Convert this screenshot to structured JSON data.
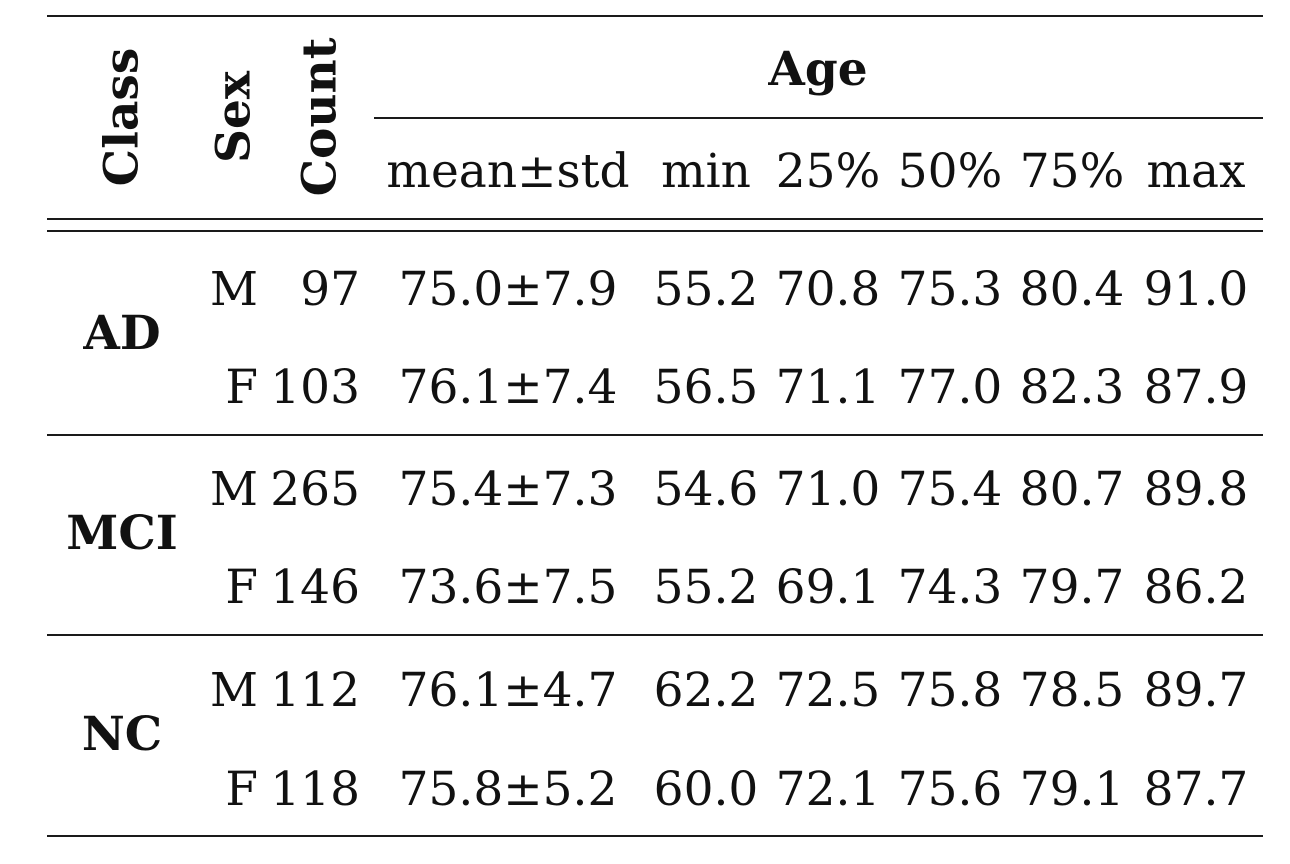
{
  "header": {
    "class": "Class",
    "sex": "Sex",
    "count": "Count",
    "age": "Age",
    "sub": [
      "mean±std",
      "min",
      "25%",
      "50%",
      "75%",
      "max"
    ]
  },
  "groups": [
    {
      "name": "AD",
      "rows": [
        {
          "sex": "M",
          "count": "97",
          "stats": [
            "75.0±7.9",
            "55.2",
            "70.8",
            "75.3",
            "80.4",
            "91.0"
          ]
        },
        {
          "sex": "F",
          "count": "103",
          "stats": [
            "76.1±7.4",
            "56.5",
            "71.1",
            "77.0",
            "82.3",
            "87.9"
          ]
        }
      ]
    },
    {
      "name": "MCI",
      "rows": [
        {
          "sex": "M",
          "count": "265",
          "stats": [
            "75.4±7.3",
            "54.6",
            "71.0",
            "75.4",
            "80.7",
            "89.8"
          ]
        },
        {
          "sex": "F",
          "count": "146",
          "stats": [
            "73.6±7.5",
            "55.2",
            "69.1",
            "74.3",
            "79.7",
            "86.2"
          ]
        }
      ]
    },
    {
      "name": "NC",
      "rows": [
        {
          "sex": "M",
          "count": "112",
          "stats": [
            "76.1±4.7",
            "62.2",
            "72.5",
            "75.8",
            "78.5",
            "89.7"
          ]
        },
        {
          "sex": "F",
          "count": "118",
          "stats": [
            "75.8±5.2",
            "60.0",
            "72.1",
            "75.6",
            "79.1",
            "87.7"
          ]
        }
      ]
    }
  ]
}
